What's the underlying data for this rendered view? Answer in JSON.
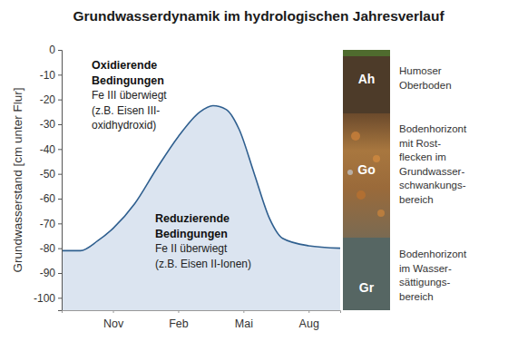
{
  "chart_data": {
    "type": "area",
    "title": "Grundwasserdynamik im hydrologischen Jahresverlauf",
    "y_label": "Grundwasserstand [cm unter Flur]",
    "x": [
      8.64,
      9.5,
      10.3,
      11,
      12,
      13,
      14,
      15,
      15.6,
      16.2,
      16.8,
      17.5,
      18.2,
      18.8,
      20,
      21.45
    ],
    "values": [
      -81,
      -81,
      -77,
      -72,
      -62,
      -48,
      -35,
      -25,
      -22.5,
      -24,
      -32,
      -50,
      -68,
      -76,
      -79,
      -80
    ],
    "color": "#2f5f8f",
    "xlim": [
      8.64,
      21.45
    ],
    "xticks": [
      {
        "value": 11,
        "label": "Nov"
      },
      {
        "value": 14,
        "label": "Feb"
      },
      {
        "value": 17,
        "label": "Mai"
      },
      {
        "value": 20,
        "label": "Aug"
      }
    ],
    "ylim": [
      -105,
      0
    ],
    "yticks": [
      0,
      -10,
      -20,
      -30,
      -40,
      -50,
      -60,
      -70,
      -80,
      -90,
      -100
    ],
    "grid": false,
    "annotations": [
      {
        "title": [
          "Oxidierende",
          "Bedingungen"
        ],
        "text": [
          "Fe III überwiegt",
          "(z.B. Eisen III-",
          "oxidhydroxid)"
        ]
      },
      {
        "title": [
          "Reduzierende",
          "Bedingungen"
        ],
        "text": [
          "Fe II überwiegt",
          "(z.B. Eisen II-Ionen)"
        ]
      }
    ]
  },
  "soil_profile": {
    "horizons": [
      {
        "symbol": "Ah",
        "description": [
          "Humoser",
          "Oberboden"
        ]
      },
      {
        "symbol": "Go",
        "description": [
          "Bodenhorizont",
          "mit Rost-",
          "flecken im",
          "Grundwasser-",
          "schwankungs-",
          "bereich"
        ]
      },
      {
        "symbol": "Gr",
        "description": [
          "Bodenhorizont",
          "im Wasser-",
          "sättigungs-",
          "bereich"
        ]
      }
    ]
  }
}
